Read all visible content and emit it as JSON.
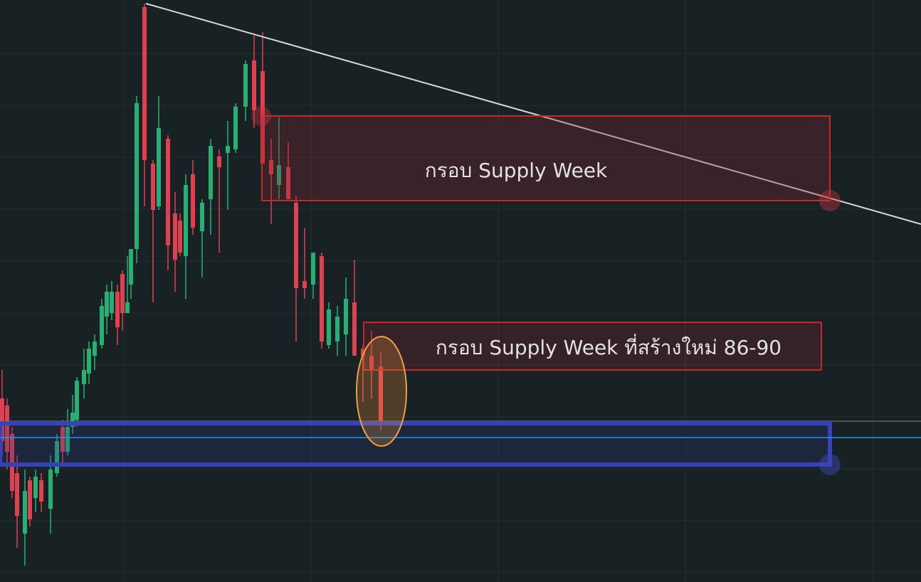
{
  "annotations": {
    "supply_zone": "กรอบ Supply Week",
    "new_supply_zone": "กรอบ Supply Week ที่สร้างใหม่ 86-90"
  }
}
